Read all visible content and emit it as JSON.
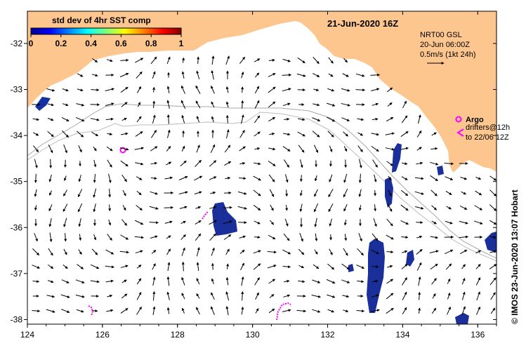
{
  "map": {
    "title_date": "21-Jun-2020 16Z",
    "credit": "© IMOS 23-Jun-2020 13:07 Hobart",
    "colorbar": {
      "title": "std dev of 4hr SST comp",
      "tick_labels": [
        "0",
        "0.2",
        "0.4",
        "0.6",
        "0.8",
        "1"
      ],
      "range": [
        0,
        1
      ]
    },
    "current_legend": {
      "line1": "NRT00 GSL",
      "line2": "20-Jun 06:00Z",
      "line3": "0.5m/s (1kt 24h)"
    },
    "argo_legend": {
      "argo_label": "Argo",
      "drifter_line1": "drifters@12h",
      "drifter_line2": "to 22/06 12Z"
    },
    "axes": {
      "x_ticks": [
        "124",
        "126",
        "128",
        "130",
        "132",
        "134",
        "136"
      ],
      "y_ticks": [
        "-32",
        "-33",
        "-34",
        "-35",
        "-36",
        "-37",
        "-38"
      ],
      "lon_range": [
        124,
        136.5
      ],
      "lat_range": [
        -38.1,
        -31.3
      ]
    },
    "colors": {
      "land": "#fcc68e",
      "magenta": "#ff00ff",
      "sst_low": "#00008b",
      "bathymetry": "#9a9a9a"
    }
  }
}
